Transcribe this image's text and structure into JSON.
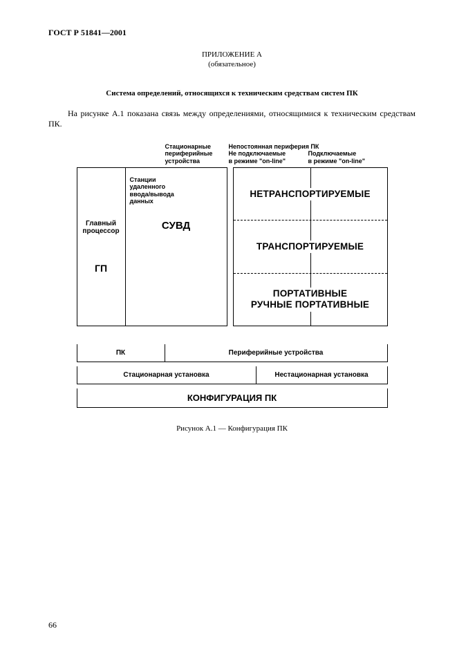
{
  "doc_header": "ГОСТ Р 51841—2001",
  "annex_title": "ПРИЛОЖЕНИЕ А",
  "annex_sub": "(обязательное)",
  "section_title": "Система определений, относящихся к техническим средствам систем ПК",
  "intro_text": "На рисунке А.1 показана связь между определениями, относящимися к техническим средствам ПК.",
  "diagram": {
    "headers": {
      "col2": "Стационарные\nпериферийные\nустройства",
      "col3": "Непостоянная периферия ПК",
      "col3a": "Не подключаемые\nв режиме \"on-line\"",
      "col3b": "Подключаемые\nв режиме \"on-line\""
    },
    "left": {
      "gp_label": "Главный\nпроцессор",
      "gp_big": "ГП",
      "suvd_small": "Станции\nудаленного\nввода/вывода\nданных",
      "suvd_mid": "СУВД"
    },
    "right": {
      "r1": "НЕТРАНСПОРТИРУЕМЫЕ",
      "r2": "ТРАНСПОРТИРУЕМЫЕ",
      "r3": "ПОРТАТИВНЫЕ\nРУЧНЫЕ ПОРТАТИВНЫЕ"
    },
    "bottom": {
      "pk": "ПК",
      "periph": "Периферийные устройства",
      "stationary": "Стационарная установка",
      "nonstationary": "Нестационарная установка",
      "config": "КОНФИГУРАЦИЯ ПК"
    }
  },
  "figure_caption": "Рисунок А.1 — Конфигурация ПК",
  "page_number": "66",
  "colors": {
    "text": "#000000",
    "background": "#ffffff",
    "border": "#000000"
  },
  "fonts": {
    "serif": "Times New Roman",
    "sans": "Arial",
    "header_size_pt": 12,
    "body_size_pt": 12,
    "diagram_label_size_pt": 10,
    "diagram_big_size_pt": 14
  }
}
